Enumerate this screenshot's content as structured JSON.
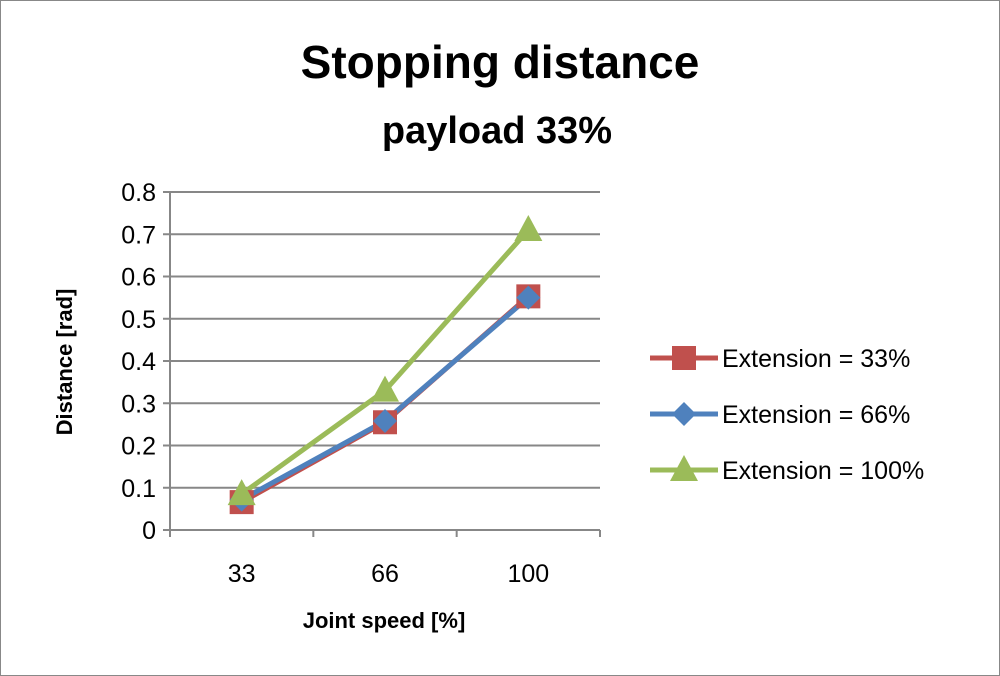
{
  "chart_data": {
    "type": "line",
    "title": "Stopping distance",
    "subtitle": "payload 33%",
    "xlabel": "Joint speed [%]",
    "ylabel": "Distance [rad]",
    "categories": [
      "33",
      "66",
      "100"
    ],
    "ylim": [
      0,
      0.8
    ],
    "yticks": [
      "0",
      "0.1",
      "0.2",
      "0.3",
      "0.4",
      "0.5",
      "0.6",
      "0.7",
      "0.8"
    ],
    "grid": true,
    "legend_position": "right",
    "series": [
      {
        "name": "Extension = 33%",
        "values": [
          0.066,
          0.255,
          0.553
        ],
        "color": "#c0504d",
        "marker": "square"
      },
      {
        "name": "Extension = 66%",
        "values": [
          0.072,
          0.258,
          0.55
        ],
        "color": "#4f81bd",
        "marker": "diamond"
      },
      {
        "name": "Extension = 100%",
        "values": [
          0.085,
          0.33,
          0.71
        ],
        "color": "#9bbb59",
        "marker": "triangle"
      }
    ]
  }
}
